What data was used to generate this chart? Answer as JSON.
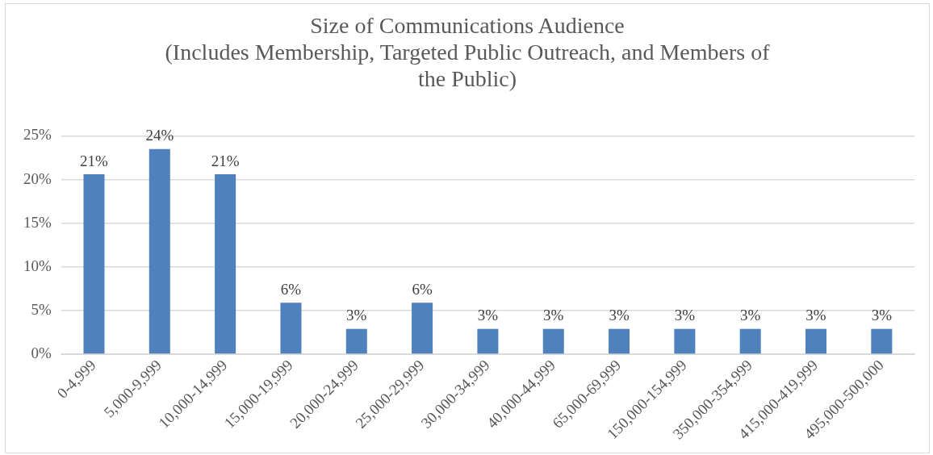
{
  "chart_data": {
    "type": "bar",
    "title": "Size of Communications Audience",
    "subtitle": "(Includes Membership, Targeted Public Outreach, and Members of the Public)",
    "categories": [
      "0-4,999",
      "5,000-9,999",
      "10,000-14,999",
      "15,000-19,999",
      "20,000-24,999",
      "25,000-29,999",
      "30,000-34,999",
      "40,000-44,999",
      "65,000-69,999",
      "150,000-154,999",
      "350,000-354,999",
      "415,000-419,999",
      "495,000-500,000"
    ],
    "values": [
      20.6,
      23.5,
      20.6,
      5.9,
      2.9,
      5.9,
      2.9,
      2.9,
      2.9,
      2.9,
      2.9,
      2.9,
      2.9
    ],
    "value_labels": [
      "21%",
      "24%",
      "21%",
      "6%",
      "3%",
      "6%",
      "3%",
      "3%",
      "3%",
      "3%",
      "3%",
      "3%",
      "3%"
    ],
    "color": "#4f81bd",
    "ylim": [
      0,
      25
    ],
    "yticks": [
      {
        "value": 0,
        "label": "0%"
      },
      {
        "value": 5,
        "label": "5%"
      },
      {
        "value": 10,
        "label": "10%"
      },
      {
        "value": 15,
        "label": "15%"
      },
      {
        "value": 20,
        "label": "20%"
      },
      {
        "value": 25,
        "label": "25%"
      }
    ],
    "grid": "y",
    "legend": false
  }
}
